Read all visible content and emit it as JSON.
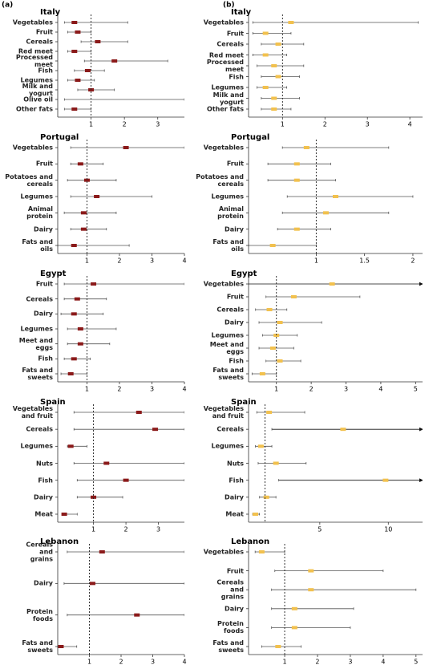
{
  "panel_labels": [
    "(a)",
    "(b)"
  ],
  "chart_data": [
    {
      "type": "forest",
      "title": "Italy",
      "categories": [
        "Vegetables",
        "Fruit",
        "Cereals",
        "Red meet",
        "Processed\nmeet",
        "Fish",
        "Legumes",
        "Milk and\nyogurt",
        "Olive oil",
        "Other fats"
      ],
      "values": [
        0.5,
        0.6,
        1.2,
        0.5,
        1.7,
        0.9,
        0.6,
        1.0,
        null,
        0.5
      ],
      "lower": [
        0.2,
        0.3,
        0.7,
        0.3,
        0.8,
        0.5,
        0.3,
        0.6,
        0.2,
        0.2
      ],
      "upper": [
        2.1,
        1.0,
        2.1,
        1.0,
        3.3,
        1.4,
        1.1,
        1.7,
        3.8,
        1.0
      ],
      "color": "#8b1a1a",
      "xlim": [
        0,
        3.8
      ],
      "xticks": [
        1,
        2,
        3
      ],
      "ref_line": 1
    },
    {
      "type": "forest",
      "title": "Portugal",
      "categories": [
        "Vegetables",
        "Fruit",
        "Potatoes and\ncereals",
        "Legumes",
        "Animal protein",
        "Dairy",
        "Fats and\noils"
      ],
      "values": [
        2.2,
        0.8,
        1.0,
        1.3,
        0.9,
        0.9,
        0.6
      ],
      "lower": [
        0.5,
        0.5,
        0.4,
        0.5,
        0.3,
        0.5,
        0.1
      ],
      "upper": [
        4.0,
        1.5,
        1.9,
        3.0,
        1.9,
        1.6,
        2.3
      ],
      "color": "#8b1a1a",
      "xlim": [
        0.1,
        4
      ],
      "xticks": [
        1,
        2,
        3,
        4
      ],
      "ref_line": 1
    },
    {
      "type": "forest",
      "title": "Egypt",
      "categories": [
        "Fruit",
        "Cereals",
        "Dairy",
        "Legumes",
        "Meet and\neggs",
        "Fish",
        "Fats and\nsweets"
      ],
      "values": [
        1.2,
        0.7,
        0.6,
        0.8,
        0.8,
        0.6,
        0.5
      ],
      "lower": [
        0.3,
        0.3,
        0.2,
        0.4,
        0.4,
        0.3,
        0.2
      ],
      "upper": [
        4.0,
        1.6,
        1.5,
        1.9,
        1.7,
        1.1,
        1.0
      ],
      "color": "#8b1a1a",
      "xlim": [
        0.1,
        4
      ],
      "xticks": [
        1,
        2,
        3,
        4
      ],
      "ref_line": 1
    },
    {
      "type": "forest",
      "title": "Spain",
      "categories": [
        "Vegetables\nand fruit",
        "Cereals",
        "Legumes",
        "Nuts",
        "Fish",
        "Dairy",
        "Meat"
      ],
      "values": [
        2.4,
        2.9,
        0.3,
        1.4,
        2.0,
        1.0,
        0.1
      ],
      "lower": [
        0.4,
        0.4,
        0.2,
        0.4,
        0.5,
        0.5,
        0.05
      ],
      "upper": [
        3.8,
        3.8,
        0.8,
        3.8,
        3.8,
        1.9,
        0.5
      ],
      "color": "#8b1a1a",
      "xlim": [
        -0.1,
        3.8
      ],
      "xticks": [
        1,
        2,
        3
      ],
      "ref_line": 1
    },
    {
      "type": "forest",
      "title": "Lebanon",
      "categories": [
        "Cereals\nand\ngrains",
        "Dairy",
        "Protein\nfoods",
        "Fats and\nsweets"
      ],
      "values": [
        1.4,
        1.1,
        2.5,
        0.1
      ],
      "lower": [
        0.3,
        0.2,
        0.3,
        0.05
      ],
      "upper": [
        4,
        4,
        4,
        0.6
      ],
      "color": "#8b1a1a",
      "xlim": [
        0,
        4
      ],
      "xticks": [
        1,
        2,
        3,
        4
      ],
      "ref_line": 1
    },
    {
      "type": "forest",
      "title": "Italy",
      "categories": [
        "Vegetables",
        "Fruit",
        "Cereals",
        "Red meet",
        "Processed\nmeet",
        "Fish",
        "Legumes",
        "Milk and\nyogurt",
        "Other fats"
      ],
      "values": [
        1.2,
        0.6,
        0.9,
        0.6,
        0.8,
        0.9,
        0.6,
        0.8,
        0.8
      ],
      "lower": [
        0.3,
        0.3,
        0.5,
        0.3,
        0.4,
        0.5,
        0.4,
        0.5,
        0.5
      ],
      "upper": [
        4.2,
        1.2,
        1.5,
        1.1,
        1.5,
        1.4,
        1.1,
        1.4,
        1.2
      ],
      "color": "#f2c14e",
      "xlim": [
        0.2,
        4.3
      ],
      "xticks": [
        1,
        2,
        3,
        4
      ],
      "ref_line": 1
    },
    {
      "type": "forest",
      "title": "Portugal",
      "categories": [
        "Vegetables",
        "Fruit",
        "Potatoes and\ncereals",
        "Legumes",
        "Animal protein",
        "Dairy",
        "Fats and\noils"
      ],
      "values": [
        0.9,
        0.8,
        0.8,
        1.2,
        1.1,
        0.8,
        0.55
      ],
      "lower": [
        0.65,
        0.5,
        0.5,
        0.7,
        0.65,
        0.6,
        0.3
      ],
      "upper": [
        1.75,
        1.15,
        1.2,
        2.0,
        1.75,
        1.15,
        1.0
      ],
      "color": "#f2c14e",
      "xlim": [
        0.3,
        2.1
      ],
      "xticks": [
        1,
        1.5,
        2
      ],
      "ref_line": 1
    },
    {
      "type": "forest",
      "title": "Egypt",
      "categories": [
        "Vegetables",
        "Fruit",
        "Cereals",
        "Dairy",
        "Legumes",
        "Meet and\neggs",
        "Fish",
        "Fats and\nsweets"
      ],
      "values": [
        2.6,
        1.5,
        0.8,
        1.1,
        1.0,
        0.9,
        1.1,
        0.6
      ],
      "lower": [
        0.2,
        0.7,
        0.4,
        0.5,
        0.6,
        0.5,
        0.7,
        0.3
      ],
      "upper": [
        5.5,
        3.4,
        1.3,
        2.3,
        1.6,
        1.5,
        1.7,
        1.0
      ],
      "color": "#f2c14e",
      "xlim": [
        0.2,
        5.2
      ],
      "xticks": [
        1,
        2,
        3,
        4,
        5
      ],
      "ref_line": 1
    },
    {
      "type": "forest",
      "title": "Spain",
      "categories": [
        "Vegetables\nand fruit",
        "Cereals",
        "Legumes",
        "Nuts",
        "Fish",
        "Dairy",
        "Meat"
      ],
      "values": [
        1.3,
        6.7,
        0.7,
        1.8,
        9.8,
        1.1,
        0.3
      ],
      "lower": [
        0.4,
        1.5,
        0.3,
        0.5,
        2.0,
        0.6,
        0.1
      ],
      "upper": [
        3.9,
        13,
        1.5,
        4.0,
        13,
        1.8,
        0.6
      ],
      "color": "#f2c14e",
      "xlim": [
        -0.2,
        12.5
      ],
      "xticks": [
        5,
        10
      ],
      "ref_line": 1
    },
    {
      "type": "forest",
      "title": "Lebanon",
      "categories": [
        "Vegetables",
        "Fruit",
        "Cereals\nand\ngrains",
        "Dairy",
        "Protein\nfoods",
        "Fats and\nsweets"
      ],
      "values": [
        0.3,
        1.8,
        1.8,
        1.3,
        1.3,
        0.8
      ],
      "lower": [
        0.1,
        0.7,
        0.6,
        0.6,
        0.6,
        0.3
      ],
      "upper": [
        1.0,
        4.0,
        5.0,
        3.1,
        3.0,
        1.5
      ],
      "color": "#f2c14e",
      "xlim": [
        -0.1,
        5.2
      ],
      "xticks": [
        1,
        2,
        3,
        4,
        5
      ],
      "ref_line": 1
    }
  ]
}
